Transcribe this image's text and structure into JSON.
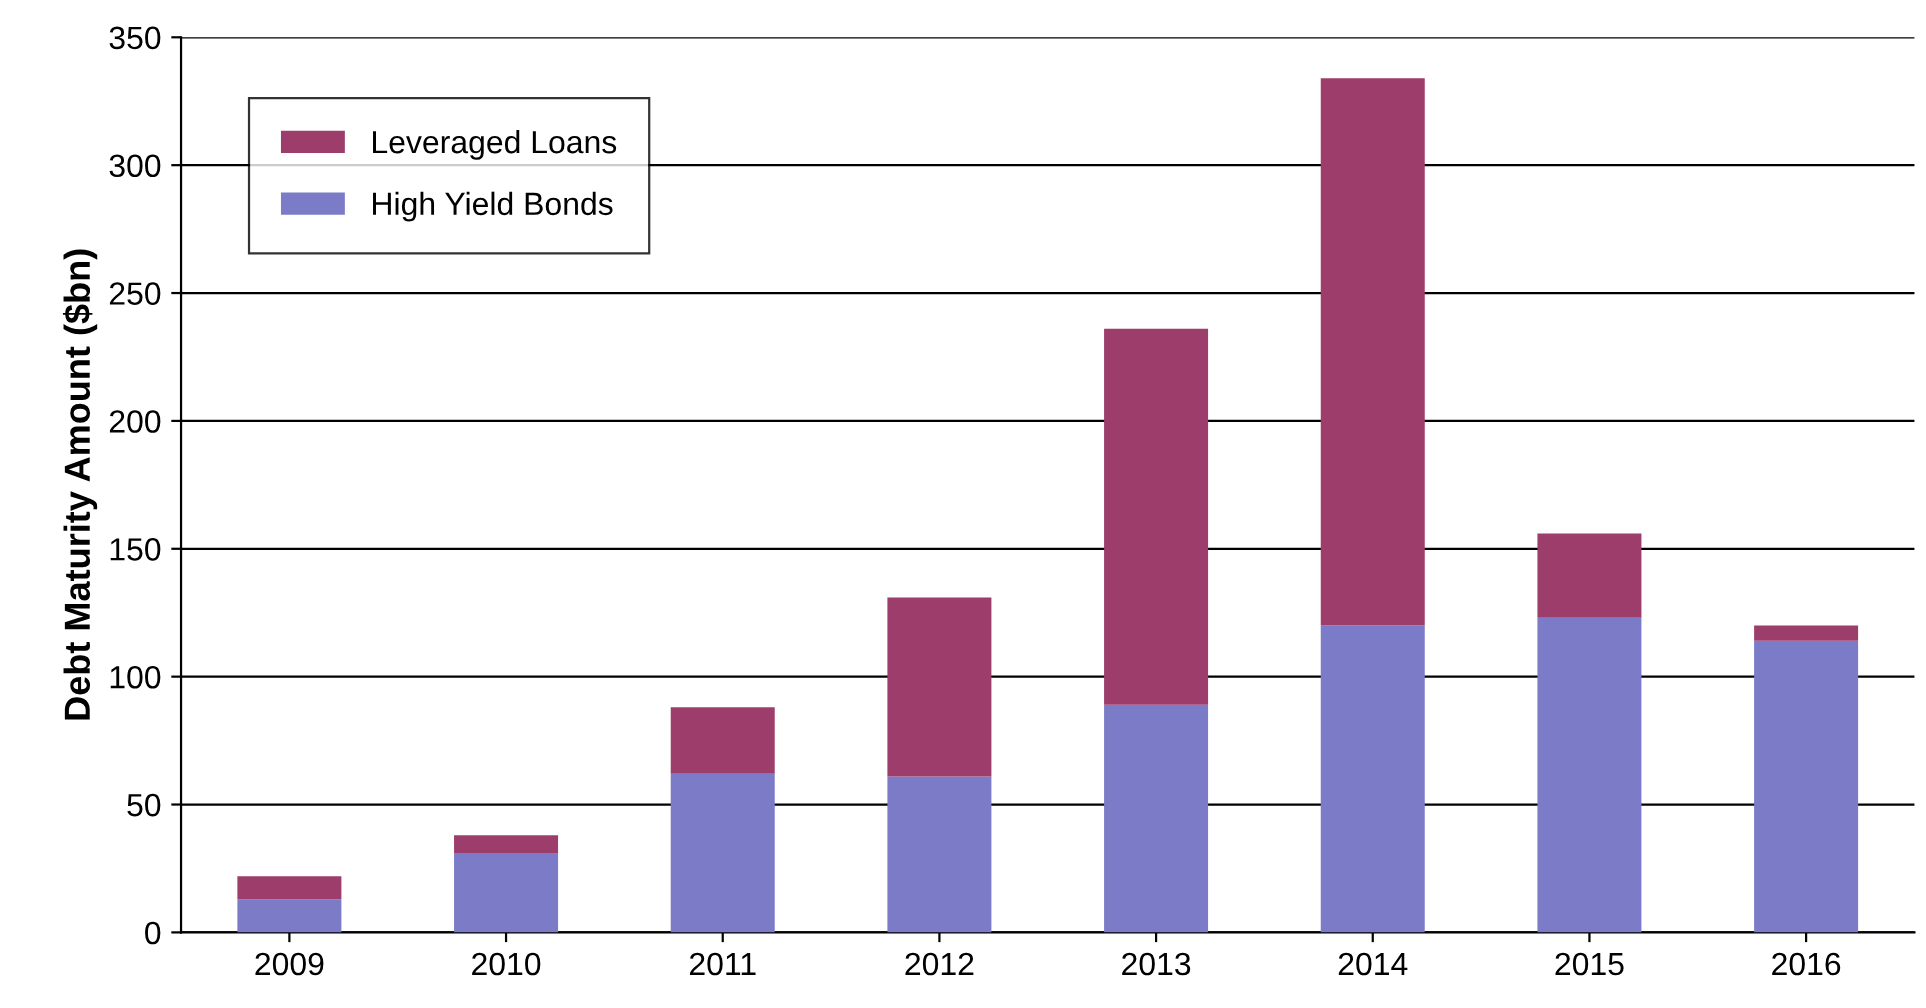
{
  "chart_data": {
    "type": "bar",
    "stacked": true,
    "ylabel": "Debt Maturity Amount ($bn)",
    "categories": [
      "2009",
      "2010",
      "2011",
      "2012",
      "2013",
      "2014",
      "2015",
      "2016"
    ],
    "series": [
      {
        "name": "High Yield Bonds",
        "color": "#7b7bc8",
        "values": [
          13,
          31,
          62,
          61,
          89,
          120,
          123,
          114
        ]
      },
      {
        "name": "Leveraged Loans",
        "color": "#9c3d6c",
        "values": [
          9,
          7,
          26,
          70,
          147,
          214,
          33,
          6
        ]
      }
    ],
    "ylim": [
      0,
      350
    ],
    "yticks": [
      0,
      50,
      100,
      150,
      200,
      250,
      300,
      350
    ],
    "grid": "y",
    "legend": "top left"
  }
}
